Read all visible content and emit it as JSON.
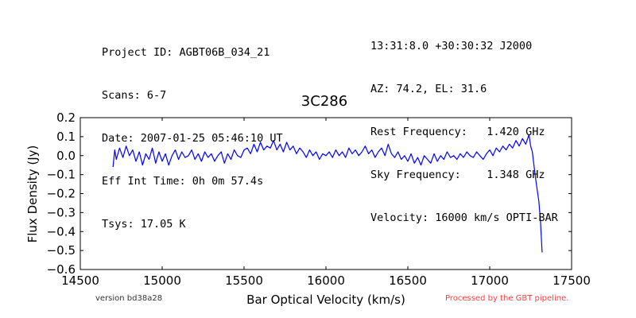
{
  "header_left": [
    "Project ID: AGBT06B_034_21",
    "Scans: 6-7",
    "Date: 2007-01-25 05:46:10 UT",
    "Eff Int Time: 0h 0m 57.4s",
    "Tsys: 17.05 K"
  ],
  "header_right": [
    "13:31:8.0 +30:30:32 J2000",
    "AZ: 74.2, EL: 31.6",
    "Rest Frequency:   1.420 GHz",
    "Sky Frequency:    1.348 GHz",
    "Velocity: 16000 km/s OPTI-BAR"
  ],
  "footer": {
    "version": "version bd38a28",
    "pipeline": "Processed by the GBT pipeline."
  },
  "colors": {
    "line": "#0000ff",
    "pipeline_text": "#ff4040"
  },
  "chart_data": {
    "type": "line",
    "title": "3C286",
    "xlabel": "Bar Optical Velocity (km/s)",
    "ylabel": "Flux Density (Jy)",
    "xlim": [
      14500,
      17500
    ],
    "ylim": [
      -0.6,
      0.2
    ],
    "xticks": [
      14500,
      15000,
      15500,
      16000,
      16500,
      17000,
      17500
    ],
    "xtick_labels": [
      "14500",
      "15000",
      "15500",
      "16000",
      "16500",
      "17000",
      "17500"
    ],
    "yticks": [
      -0.6,
      -0.5,
      -0.4,
      -0.3,
      -0.2,
      -0.1,
      0.0,
      0.1,
      0.2
    ],
    "ytick_labels": [
      "−0.6",
      "−0.5",
      "−0.4",
      "−0.3",
      "−0.2",
      "−0.1",
      "0.0",
      "0.1",
      "0.2"
    ],
    "grid": false,
    "series": [
      {
        "x": [
          14700,
          14710,
          14720,
          14740,
          14760,
          14780,
          14800,
          14820,
          14840,
          14860,
          14880,
          14900,
          14920,
          14940,
          14960,
          14980,
          15000,
          15020,
          15040,
          15060,
          15080,
          15100,
          15120,
          15140,
          15160,
          15180,
          15200,
          15220,
          15240,
          15260,
          15280,
          15300,
          15320,
          15340,
          15360,
          15380,
          15400,
          15420,
          15440,
          15460,
          15480,
          15500,
          15520,
          15540,
          15560,
          15580,
          15600,
          15620,
          15640,
          15660,
          15680,
          15700,
          15720,
          15740,
          15760,
          15780,
          15800,
          15820,
          15840,
          15860,
          15880,
          15900,
          15920,
          15940,
          15960,
          15980,
          16000,
          16020,
          16040,
          16060,
          16080,
          16100,
          16120,
          16140,
          16160,
          16180,
          16200,
          16220,
          16240,
          16260,
          16280,
          16300,
          16320,
          16340,
          16360,
          16380,
          16400,
          16420,
          16440,
          16460,
          16480,
          16500,
          16520,
          16540,
          16560,
          16580,
          16600,
          16620,
          16640,
          16660,
          16680,
          16700,
          16720,
          16740,
          16760,
          16780,
          16800,
          16820,
          16840,
          16860,
          16880,
          16900,
          16920,
          16940,
          16960,
          16980,
          17000,
          17020,
          17040,
          17060,
          17080,
          17100,
          17120,
          17140,
          17160,
          17180,
          17200,
          17220,
          17240,
          17250,
          17260,
          17270,
          17280,
          17290,
          17300,
          17310,
          17320
        ],
        "y": [
          -0.06,
          0.03,
          -0.02,
          0.04,
          -0.01,
          0.05,
          0.0,
          0.03,
          -0.03,
          0.02,
          -0.05,
          0.01,
          -0.02,
          0.04,
          -0.04,
          0.02,
          -0.03,
          0.01,
          -0.05,
          0.0,
          0.03,
          -0.02,
          0.02,
          -0.01,
          0.0,
          0.03,
          -0.02,
          0.01,
          -0.03,
          0.02,
          -0.01,
          0.01,
          -0.03,
          0.0,
          0.02,
          -0.04,
          0.01,
          -0.02,
          0.03,
          0.0,
          -0.01,
          0.03,
          0.04,
          0.01,
          0.06,
          0.02,
          0.07,
          0.03,
          0.05,
          0.04,
          0.08,
          0.03,
          0.06,
          0.02,
          0.07,
          0.03,
          0.05,
          0.01,
          0.04,
          0.02,
          -0.01,
          0.03,
          0.0,
          0.02,
          -0.02,
          0.01,
          0.0,
          0.02,
          -0.01,
          0.03,
          0.0,
          0.02,
          -0.01,
          0.04,
          0.01,
          0.03,
          0.0,
          0.02,
          0.05,
          0.01,
          0.03,
          -0.01,
          0.02,
          0.04,
          0.0,
          0.06,
          0.01,
          -0.01,
          0.02,
          -0.02,
          0.0,
          -0.03,
          0.01,
          -0.04,
          -0.01,
          -0.05,
          0.0,
          -0.02,
          -0.04,
          0.01,
          -0.03,
          0.0,
          -0.02,
          0.02,
          -0.01,
          0.0,
          -0.02,
          0.01,
          -0.01,
          0.02,
          0.0,
          -0.01,
          0.02,
          0.0,
          -0.02,
          0.01,
          0.03,
          0.0,
          0.04,
          0.02,
          0.05,
          0.03,
          0.06,
          0.04,
          0.08,
          0.05,
          0.09,
          0.06,
          0.11,
          0.05,
          0.02,
          -0.05,
          -0.12,
          -0.18,
          -0.24,
          -0.35,
          -0.51
        ]
      }
    ]
  }
}
